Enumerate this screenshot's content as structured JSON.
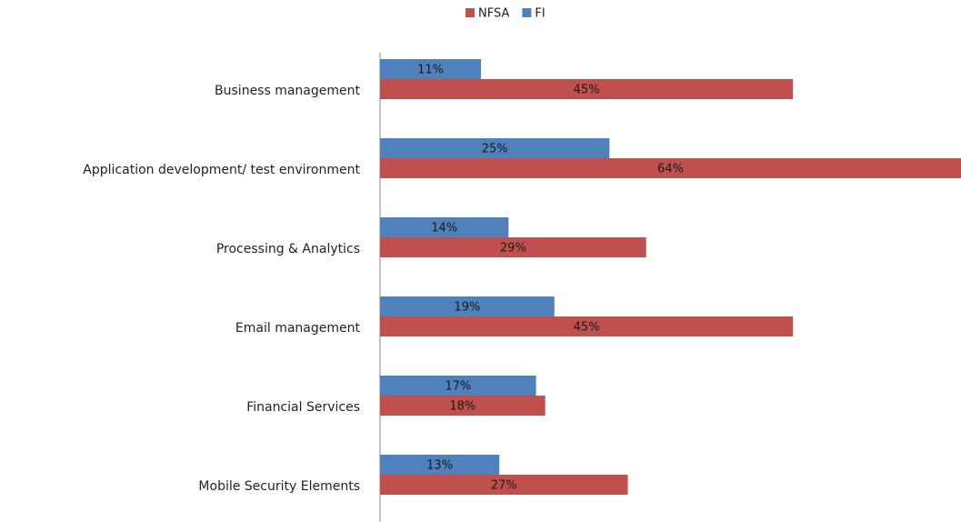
{
  "chart_data": {
    "type": "bar",
    "orientation": "horizontal",
    "categories": [
      "Business management",
      "Application development/ test environment",
      "Processing & Analytics",
      "Email management",
      "Financial Services",
      "Mobile Security Elements"
    ],
    "series": [
      {
        "name": "NFSA",
        "color": "#c0504d",
        "values": [
          45,
          64,
          29,
          45,
          18,
          27
        ],
        "value_labels": [
          "45%",
          "64%",
          "29%",
          "45%",
          "18%",
          "27%"
        ]
      },
      {
        "name": "FI",
        "color": "#4f81bd",
        "values": [
          11,
          25,
          14,
          19,
          17,
          13
        ],
        "value_labels": [
          "11%",
          "25%",
          "14%",
          "19%",
          "17%",
          "13%"
        ]
      }
    ],
    "xlim": [
      0,
      64
    ],
    "legend": "top"
  }
}
